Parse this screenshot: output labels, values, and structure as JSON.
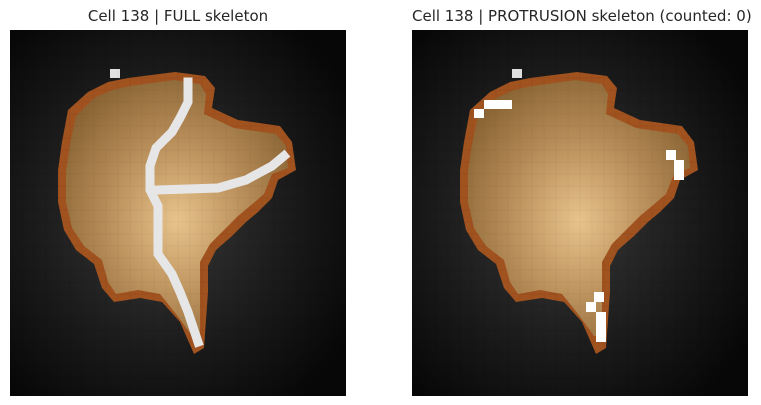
{
  "figure": {
    "panels": [
      {
        "title": "Cell 138 | FULL skeleton",
        "skeleton": "full"
      },
      {
        "title": "Cell 138 | PROTRUSION skeleton (counted: 0)",
        "skeleton": "protrusion"
      }
    ]
  },
  "colors": {
    "background_dark": "#0b0b0b",
    "cell_fill": "#b48a55",
    "cell_highlight": "#e0b980",
    "cell_shadow": "#7a5a30",
    "outline": "#a0521f",
    "skeleton": "#e6e6e6",
    "protrusion_skeleton": "#ffffff"
  }
}
